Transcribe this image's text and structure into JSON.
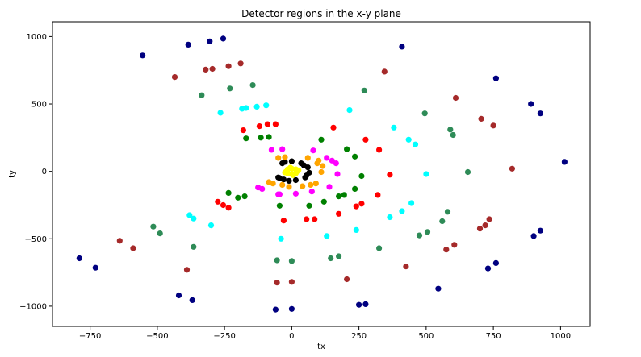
{
  "chart_data": {
    "type": "scatter",
    "title": "Detector regions in the x-y plane",
    "xlabel": "tx",
    "ylabel": "ty",
    "xlim": [
      -890,
      1110
    ],
    "ylim": [
      -1150,
      1110
    ],
    "xticks": [
      -750,
      -500,
      -250,
      0,
      250,
      500,
      750,
      1000
    ],
    "yticks": [
      -1000,
      -500,
      0,
      500,
      1000
    ],
    "grid": false,
    "legend": "none",
    "series": [
      {
        "color": "#ffff00",
        "points": [
          [
            -20,
            0
          ],
          [
            -15,
            15
          ],
          [
            0,
            20
          ],
          [
            15,
            15
          ],
          [
            20,
            0
          ],
          [
            15,
            -15
          ],
          [
            0,
            -20
          ],
          [
            -15,
            -15
          ],
          [
            -5,
            28
          ],
          [
            5,
            -28
          ],
          [
            25,
            8
          ],
          [
            -25,
            -8
          ]
        ]
      },
      {
        "color": "#000000",
        "points": [
          [
            -45,
            -50
          ],
          [
            -35,
            60
          ],
          [
            0,
            75
          ],
          [
            35,
            60
          ],
          [
            60,
            30
          ],
          [
            65,
            -10
          ],
          [
            50,
            -45
          ],
          [
            15,
            -65
          ],
          [
            -10,
            -70
          ],
          [
            -50,
            -45
          ],
          [
            -30,
            -60
          ],
          [
            -25,
            70
          ],
          [
            45,
            45
          ],
          [
            55,
            -30
          ]
        ]
      },
      {
        "color": "#ffa500",
        "points": [
          [
            -50,
            100
          ],
          [
            -85,
            -80
          ],
          [
            -70,
            -90
          ],
          [
            -10,
            -115
          ],
          [
            40,
            -110
          ],
          [
            90,
            -90
          ],
          [
            110,
            -5
          ],
          [
            115,
            40
          ],
          [
            100,
            80
          ],
          [
            60,
            100
          ],
          [
            -25,
            105
          ],
          [
            -35,
            -100
          ],
          [
            70,
            -100
          ],
          [
            95,
            60
          ]
        ]
      },
      {
        "color": "#ff00ff",
        "points": [
          [
            -75,
            160
          ],
          [
            -35,
            165
          ],
          [
            80,
            155
          ],
          [
            130,
            100
          ],
          [
            165,
            60
          ],
          [
            170,
            -20
          ],
          [
            140,
            -115
          ],
          [
            75,
            -150
          ],
          [
            15,
            -165
          ],
          [
            -50,
            -170
          ],
          [
            -110,
            -130
          ],
          [
            -125,
            -120
          ],
          [
            150,
            80
          ],
          [
            -45,
            -170
          ]
        ]
      },
      {
        "color": "#008000",
        "points": [
          [
            -170,
            245
          ],
          [
            -115,
            250
          ],
          [
            -85,
            255
          ],
          [
            110,
            235
          ],
          [
            205,
            165
          ],
          [
            235,
            110
          ],
          [
            260,
            -35
          ],
          [
            235,
            -130
          ],
          [
            195,
            -175
          ],
          [
            175,
            -185
          ],
          [
            120,
            -225
          ],
          [
            65,
            -255
          ],
          [
            -45,
            -255
          ],
          [
            -175,
            -185
          ],
          [
            -200,
            -195
          ],
          [
            -235,
            -160
          ]
        ]
      },
      {
        "color": "#ff0000",
        "points": [
          [
            -120,
            335
          ],
          [
            -90,
            350
          ],
          [
            -60,
            350
          ],
          [
            -180,
            305
          ],
          [
            155,
            325
          ],
          [
            275,
            235
          ],
          [
            325,
            160
          ],
          [
            365,
            -25
          ],
          [
            320,
            -175
          ],
          [
            260,
            -240
          ],
          [
            240,
            -260
          ],
          [
            175,
            -315
          ],
          [
            85,
            -355
          ],
          [
            55,
            -355
          ],
          [
            -30,
            -365
          ],
          [
            -255,
            -250
          ],
          [
            -235,
            -270
          ],
          [
            -275,
            -225
          ]
        ]
      },
      {
        "color": "#00ffff",
        "points": [
          [
            -185,
            465
          ],
          [
            -170,
            470
          ],
          [
            -130,
            480
          ],
          [
            -95,
            490
          ],
          [
            -265,
            435
          ],
          [
            215,
            455
          ],
          [
            380,
            325
          ],
          [
            435,
            235
          ],
          [
            460,
            200
          ],
          [
            500,
            -20
          ],
          [
            445,
            -235
          ],
          [
            410,
            -295
          ],
          [
            365,
            -340
          ],
          [
            240,
            -435
          ],
          [
            130,
            -480
          ],
          [
            -40,
            -500
          ],
          [
            -300,
            -400
          ],
          [
            -380,
            -325
          ],
          [
            -365,
            -350
          ]
        ]
      },
      {
        "color": "#2e8b57",
        "points": [
          [
            -230,
            615
          ],
          [
            -145,
            640
          ],
          [
            -335,
            565
          ],
          [
            270,
            600
          ],
          [
            495,
            430
          ],
          [
            600,
            270
          ],
          [
            590,
            310
          ],
          [
            655,
            -5
          ],
          [
            580,
            -300
          ],
          [
            560,
            -370
          ],
          [
            505,
            -450
          ],
          [
            475,
            -475
          ],
          [
            325,
            -570
          ],
          [
            175,
            -630
          ],
          [
            145,
            -645
          ],
          [
            0,
            -665
          ],
          [
            -55,
            -660
          ],
          [
            -365,
            -560
          ],
          [
            -490,
            -460
          ],
          [
            -515,
            -410
          ]
        ]
      },
      {
        "color": "#a52a2a",
        "points": [
          [
            -435,
            700
          ],
          [
            -320,
            755
          ],
          [
            -295,
            760
          ],
          [
            -235,
            780
          ],
          [
            -190,
            800
          ],
          [
            345,
            740
          ],
          [
            610,
            545
          ],
          [
            705,
            390
          ],
          [
            750,
            340
          ],
          [
            820,
            20
          ],
          [
            735,
            -355
          ],
          [
            720,
            -400
          ],
          [
            700,
            -425
          ],
          [
            605,
            -545
          ],
          [
            575,
            -580
          ],
          [
            425,
            -705
          ],
          [
            205,
            -800
          ],
          [
            0,
            -820
          ],
          [
            -55,
            -825
          ],
          [
            -390,
            -730
          ],
          [
            -590,
            -570
          ],
          [
            -640,
            -515
          ]
        ]
      },
      {
        "color": "#000080",
        "points": [
          [
            -555,
            860
          ],
          [
            -385,
            940
          ],
          [
            -305,
            965
          ],
          [
            -255,
            985
          ],
          [
            410,
            925
          ],
          [
            760,
            690
          ],
          [
            890,
            500
          ],
          [
            925,
            430
          ],
          [
            1015,
            70
          ],
          [
            925,
            -440
          ],
          [
            900,
            -480
          ],
          [
            760,
            -680
          ],
          [
            730,
            -720
          ],
          [
            545,
            -870
          ],
          [
            275,
            -985
          ],
          [
            250,
            -990
          ],
          [
            0,
            -1020
          ],
          [
            -60,
            -1025
          ],
          [
            -370,
            -955
          ],
          [
            -420,
            -920
          ],
          [
            -730,
            -715
          ],
          [
            -790,
            -645
          ]
        ]
      }
    ]
  }
}
